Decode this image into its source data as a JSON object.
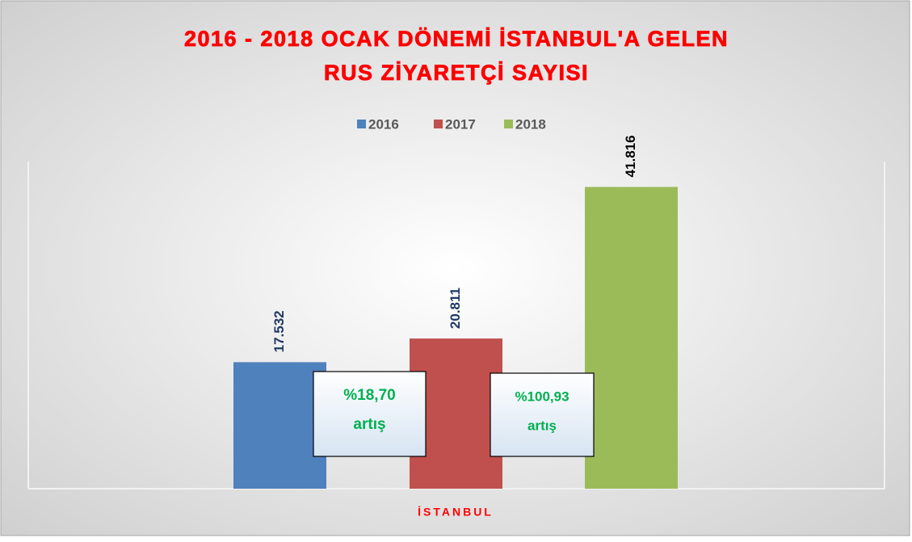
{
  "chart_data": {
    "type": "bar",
    "title": [
      "2016 - 2018 OCAK DÖNEMİ İSTANBUL'A GELEN",
      "RUS ZİYARETÇİ SAYISI"
    ],
    "categories": [
      "İSTANBUL"
    ],
    "series": [
      {
        "name": "2016",
        "color": "#4f81bd",
        "values": [
          17532
        ],
        "value_labels": [
          "17.532"
        ]
      },
      {
        "name": "2017",
        "color": "#c0504d",
        "values": [
          20811
        ],
        "value_labels": [
          "20.811"
        ]
      },
      {
        "name": "2018",
        "color": "#9bbb59",
        "values": [
          41816
        ],
        "value_labels": [
          "41.816"
        ]
      }
    ],
    "ylim": [
      0,
      45000
    ],
    "legend": "top",
    "annotations": [
      [
        "%18,70",
        "artış"
      ],
      [
        "%100,93",
        "artış"
      ]
    ]
  }
}
